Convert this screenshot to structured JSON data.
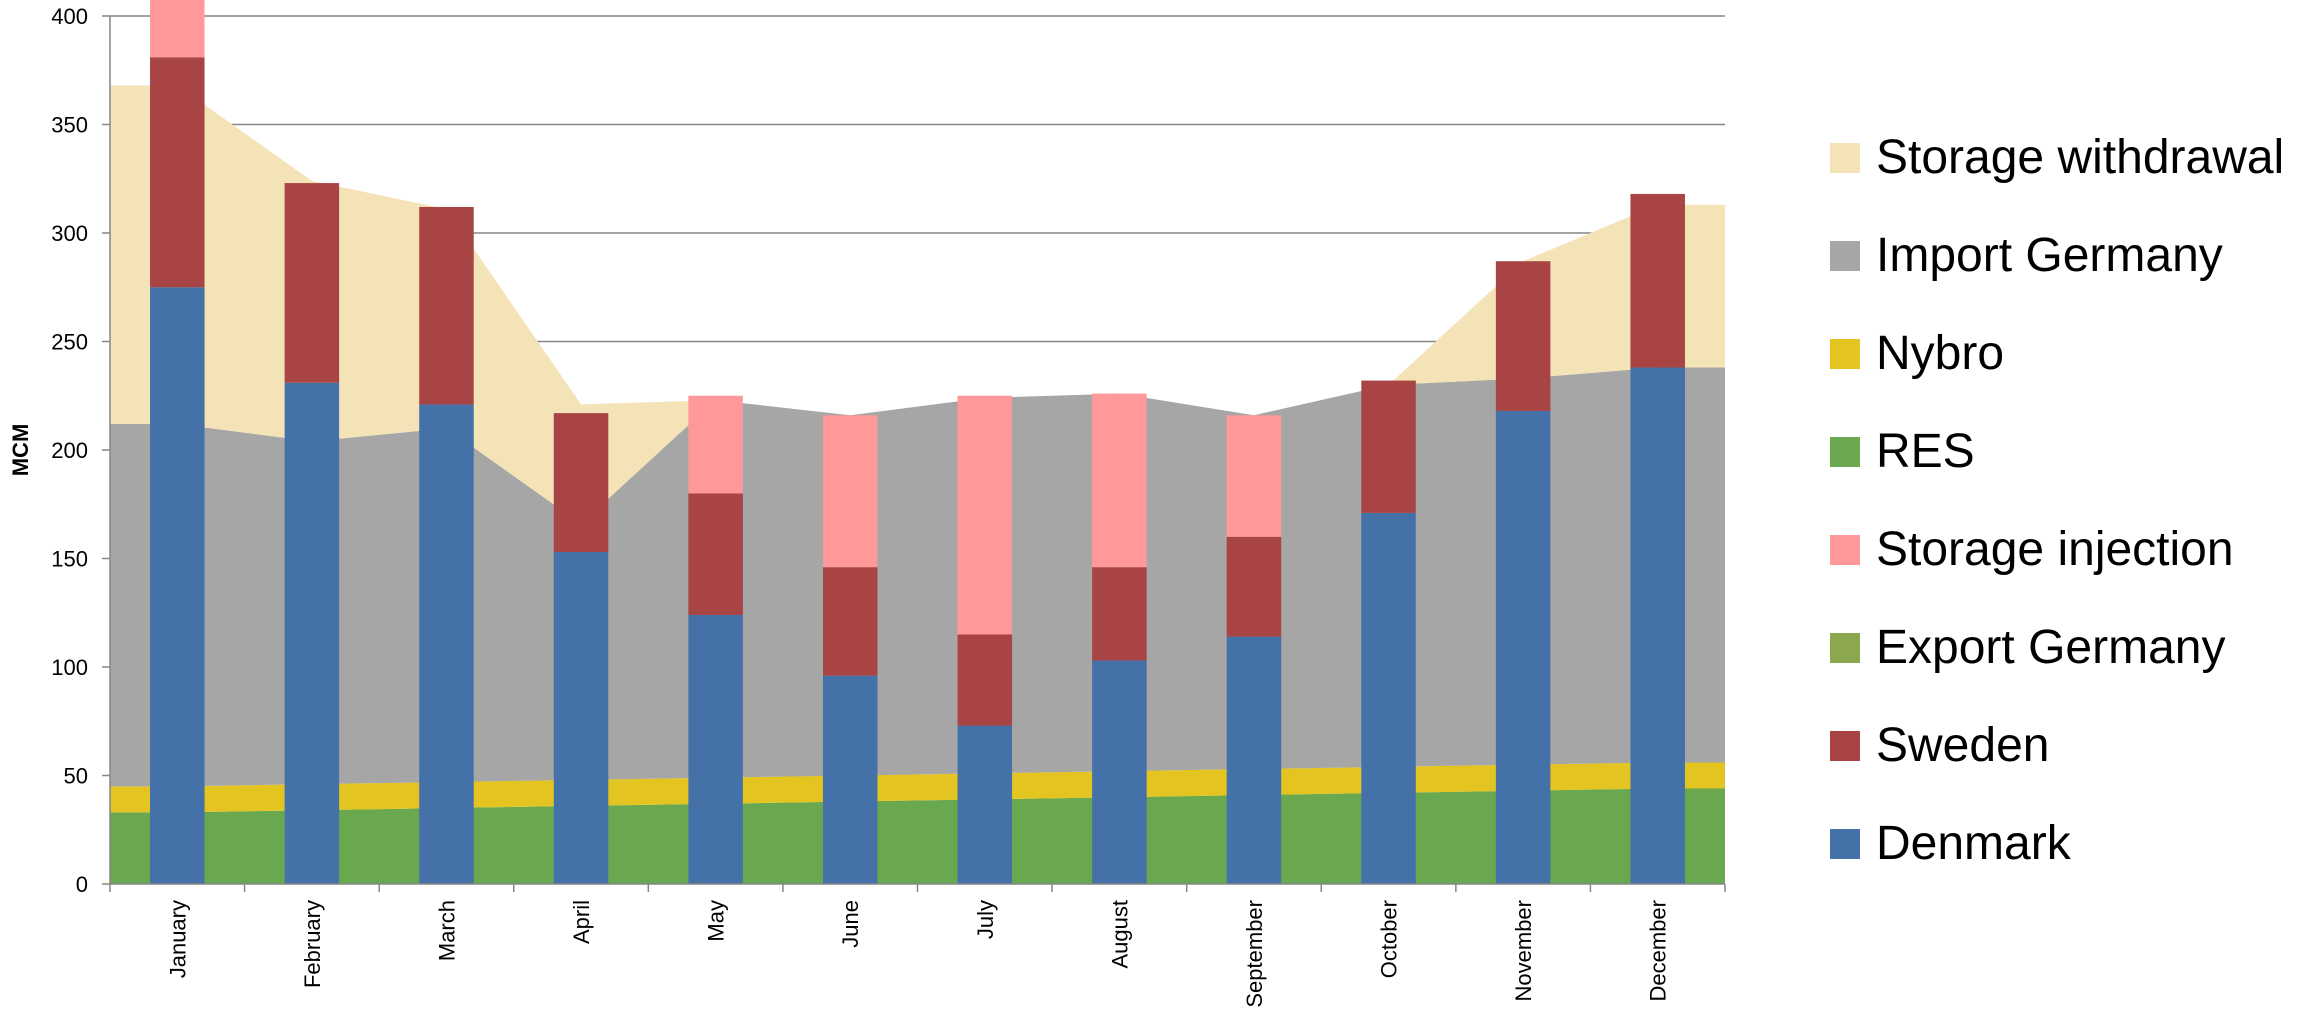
{
  "chart_data": {
    "type": "bar",
    "title": "",
    "xlabel": "",
    "ylabel": "MCM",
    "ylim": [
      0,
      400
    ],
    "yticks": [
      0,
      50,
      100,
      150,
      200,
      250,
      300,
      350,
      400
    ],
    "grid": true,
    "legend_position": "right",
    "categories": [
      "January",
      "February",
      "March",
      "April",
      "May",
      "June",
      "July",
      "August",
      "September",
      "October",
      "November",
      "December"
    ],
    "bar_series": [
      {
        "name": "Denmark",
        "color": "#4472A8",
        "values": [
          275,
          231,
          221,
          153,
          124,
          96,
          73,
          103,
          114,
          171,
          218,
          238
        ]
      },
      {
        "name": "Sweden",
        "color": "#A84444",
        "values": [
          106,
          92,
          91,
          64,
          56,
          50,
          42,
          43,
          46,
          61,
          69,
          80
        ]
      },
      {
        "name": "Storage injection",
        "color": "#FF9999",
        "values": [
          45,
          0,
          0,
          0,
          45,
          70,
          110,
          80,
          56,
          0,
          0,
          0
        ]
      }
    ],
    "area_series": [
      {
        "name": "RES",
        "color": "#6AA84F",
        "values": [
          33,
          34,
          35,
          36,
          37,
          38,
          39,
          40,
          41,
          42,
          43,
          44
        ]
      },
      {
        "name": "Export Germany",
        "color": "#8BA84E",
        "values": [
          0,
          0,
          0,
          0,
          0,
          0,
          0,
          0,
          0,
          0,
          0,
          0
        ]
      },
      {
        "name": "Nybro",
        "color": "#E3C420",
        "values": [
          12,
          12,
          12,
          12,
          12,
          12,
          12,
          12,
          12,
          12,
          12,
          12
        ]
      },
      {
        "name": "Import Germany",
        "color": "#A6A6A6",
        "values": [
          167,
          158,
          163,
          118,
          174,
          166,
          173,
          174,
          163,
          176,
          178,
          182
        ]
      },
      {
        "name": "Storage withdrawal",
        "color": "#F5E3B8",
        "values": [
          156,
          120,
          101,
          55,
          0,
          0,
          0,
          0,
          0,
          0,
          54,
          75
        ]
      }
    ],
    "legend": [
      {
        "name": "Storage withdrawal",
        "color": "#F5E3B8"
      },
      {
        "name": "Import Germany",
        "color": "#A6A6A6"
      },
      {
        "name": "Nybro",
        "color": "#E3C420"
      },
      {
        "name": "RES",
        "color": "#6AA84F"
      },
      {
        "name": "Storage injection",
        "color": "#FF9999"
      },
      {
        "name": "Export Germany",
        "color": "#8BA84E"
      },
      {
        "name": "Sweden",
        "color": "#A84444"
      },
      {
        "name": "Denmark",
        "color": "#4472A8"
      }
    ]
  }
}
